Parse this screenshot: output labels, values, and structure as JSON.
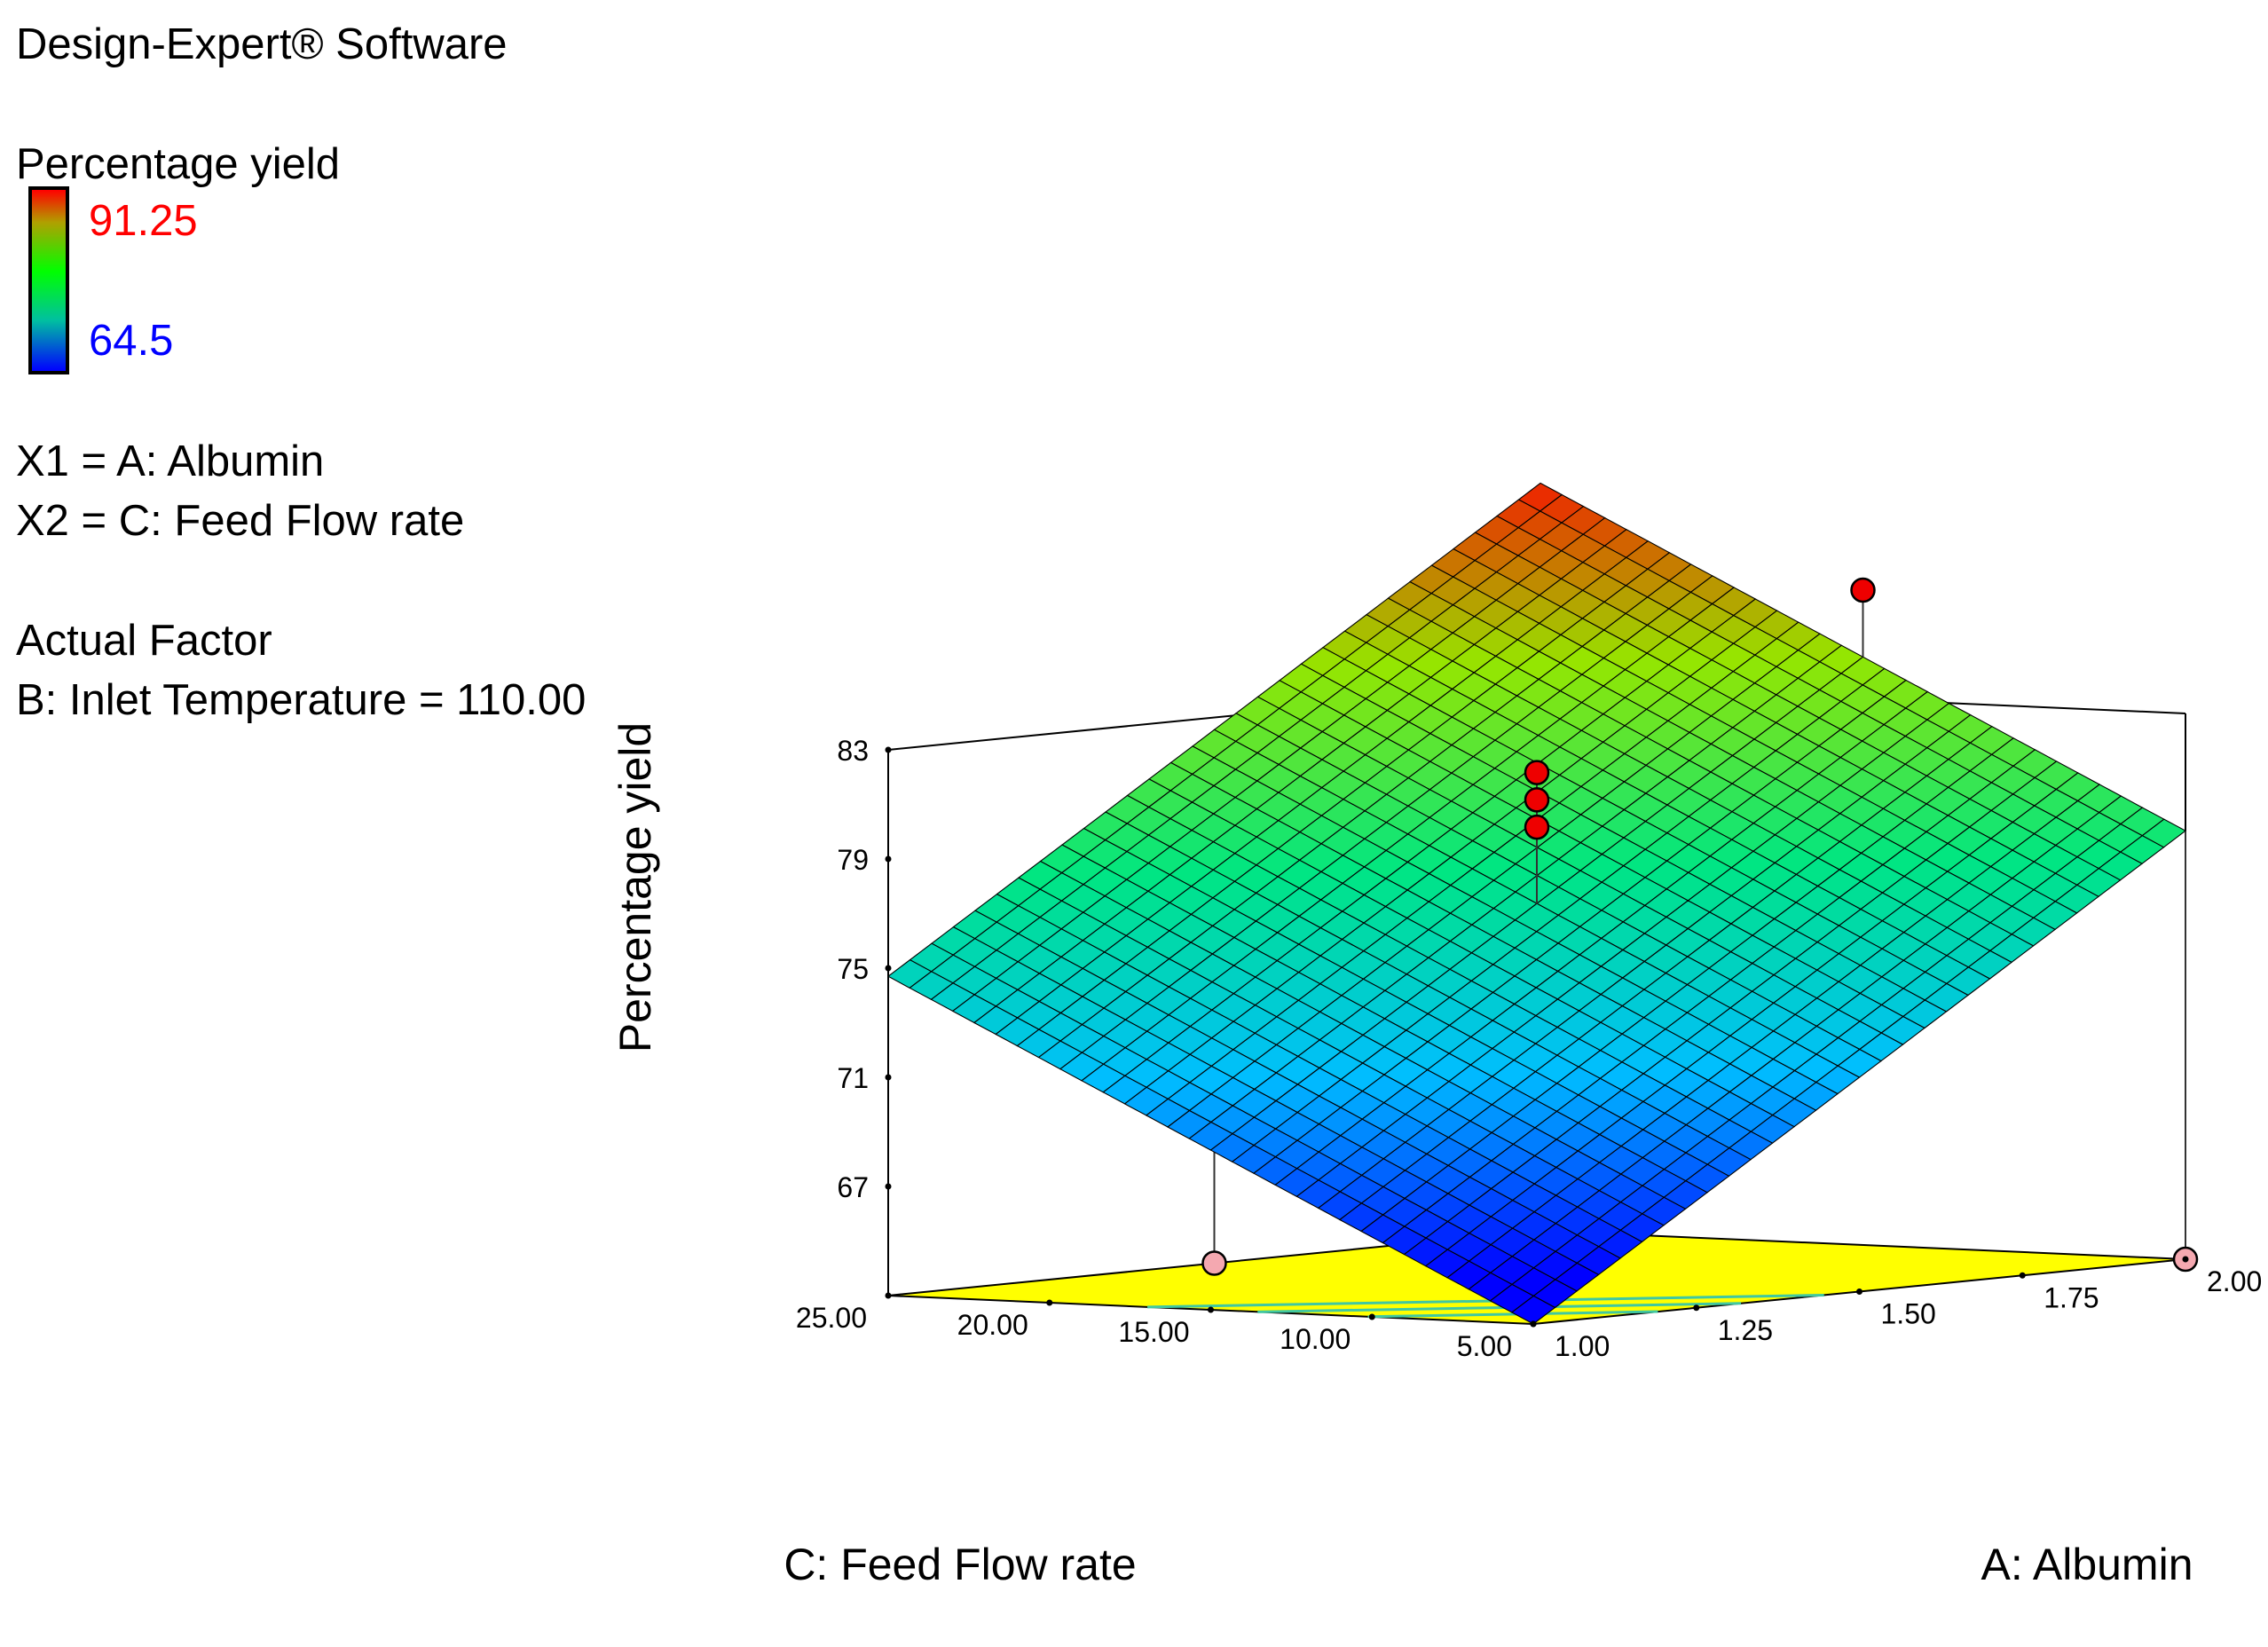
{
  "header": {
    "software": "Design-Expert® Software"
  },
  "legend": {
    "response_name": "Percentage yield",
    "max_label": "91.25",
    "min_label": "64.5",
    "max_color": "#ff0000",
    "min_color": "#0000ff",
    "x1_label": "X1 = A: Albumin",
    "x2_label": "X2 = C: Feed Flow rate",
    "actual_factor_heading": "Actual Factor",
    "actual_factor_value": "B: Inlet Temperature = 110.00"
  },
  "chart_data": {
    "type": "surface3d",
    "title": "Percentage yield",
    "zlabel": "Percentage yield",
    "a_axis": {
      "label": "A: Albumin",
      "range": [
        1.0,
        2.0
      ],
      "ticks": [
        1.0,
        1.25,
        1.5,
        1.75,
        2.0
      ],
      "tick_labels": [
        "1.00",
        "1.25",
        "1.50",
        "1.75",
        "2.00"
      ]
    },
    "c_axis": {
      "label": "C: Feed Flow rate",
      "range": [
        5.0,
        25.0
      ],
      "ticks": [
        5.0,
        10.0,
        15.0,
        20.0,
        25.0
      ],
      "tick_labels": [
        "5.00",
        "10.00",
        "15.00",
        "20.00",
        "25.00"
      ]
    },
    "z_axis": {
      "label": "Percentage yield",
      "range": [
        63,
        83
      ],
      "ticks": [
        67,
        71,
        75,
        79,
        83
      ],
      "tick_labels": [
        "67",
        "71",
        "75",
        "79",
        "83"
      ]
    },
    "surface": {
      "model": "linear",
      "corner_values": {
        "a_low_c_low": 63.0,
        "a_high_c_low": 78.7,
        "a_low_c_high": 74.7,
        "a_high_c_high": 90.4
      },
      "grid_divisions": 30,
      "color_low": "#0000ff",
      "color_high": "#ff0000"
    },
    "contour_levels": [
      66,
      68,
      70
    ],
    "design_points": [
      {
        "a": 1.5,
        "c": 15.0,
        "z": 81.5,
        "above_surface": true
      },
      {
        "a": 1.5,
        "c": 15.0,
        "z": 80.5,
        "above_surface": true
      },
      {
        "a": 1.5,
        "c": 15.0,
        "z": 79.5,
        "above_surface": true
      },
      {
        "a": 2.0,
        "c": 15.0,
        "z": 87.0,
        "above_surface": true
      },
      {
        "a": 1.5,
        "c": 25.0,
        "z": 63.0,
        "above_surface": false
      },
      {
        "a": 2.0,
        "c": 5.0,
        "z": 63.0,
        "above_surface": false
      }
    ],
    "colors": {
      "floor": "#ffff00",
      "contour": "#40c8a0",
      "point_above": "#ee0000",
      "point_below": "#f4a8b0",
      "axes": "#000000"
    }
  }
}
